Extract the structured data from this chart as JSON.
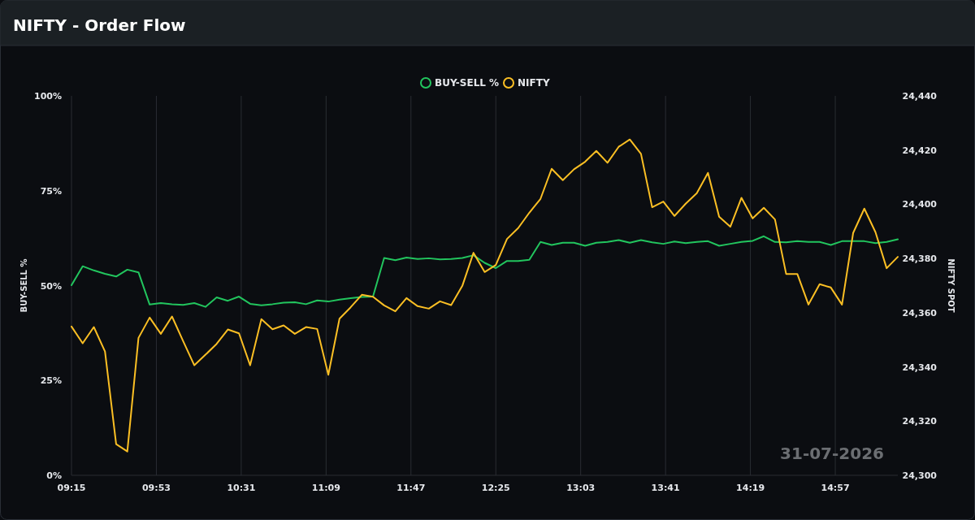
{
  "chart_data": {
    "type": "line",
    "title": "NIFTY - Order Flow",
    "ylabel": "BUY-SELL %",
    "y2label": "NIFTY SPOT",
    "annotations": [
      "31-07-2026"
    ],
    "x": [
      9.25,
      9.3333,
      9.4167,
      9.5,
      9.5833,
      9.6667,
      9.75,
      9.8333,
      9.9167,
      10,
      10.0833,
      10.1667,
      10.25,
      10.3333,
      10.4167,
      10.5,
      10.5833,
      10.6667,
      10.75,
      10.8333,
      10.9167,
      11,
      11.0833,
      11.1667,
      11.25,
      11.3333,
      11.4167,
      11.5,
      11.5833,
      11.6667,
      11.75,
      11.8333,
      11.9167,
      12,
      12.0833,
      12.1667,
      12.25,
      12.3333,
      12.4167,
      12.5,
      12.5833,
      12.6667,
      12.75,
      12.8333,
      12.9167,
      13,
      13.0833,
      13.1667,
      13.25,
      13.3333,
      13.4167,
      13.5,
      13.5833,
      13.6667,
      13.75,
      13.8333,
      13.9167,
      14,
      14.0833,
      14.1667,
      14.25,
      14.3333,
      14.4167,
      14.5,
      14.5833,
      14.6667,
      14.75,
      14.8333,
      14.9167,
      15,
      15.0833,
      15.1667,
      15.25,
      15.3333,
      15.4167
    ],
    "series": [
      {
        "name": "BUY-SELL %",
        "color": "#22c55e",
        "values": [
          50.1,
          55.1,
          54.0,
          53.1,
          52.4,
          54.2,
          53.5,
          45.0,
          45.4,
          45.1,
          44.9,
          45.4,
          44.4,
          46.9,
          46.0,
          47.1,
          45.2,
          44.8,
          45.1,
          45.5,
          45.6,
          45.1,
          46.1,
          45.8,
          46.3,
          46.7,
          47.0,
          47.1,
          57.3,
          56.7,
          57.4,
          57.0,
          57.2,
          56.9,
          57.0,
          57.3,
          58.0,
          56.0,
          54.6,
          56.5,
          56.5,
          56.8,
          61.5,
          60.7,
          61.3,
          61.3,
          60.5,
          61.3,
          61.5,
          62.0,
          61.3,
          62.0,
          61.4,
          61.0,
          61.6,
          61.2,
          61.5,
          61.7,
          60.5,
          61.0,
          61.5,
          61.8,
          63.0,
          61.5,
          61.4,
          61.7,
          61.5,
          61.5,
          60.7,
          61.7,
          61.7,
          61.7,
          61.2,
          61.5,
          62.2
        ]
      },
      {
        "name": "NIFTY",
        "color": "#fbbf24",
        "axis": "y2",
        "values": [
          24354.9,
          24348.7,
          24354.7,
          24345.7,
          24311.5,
          24308.8,
          24350.7,
          24358.2,
          24352.2,
          24358.6,
          24349.5,
          24340.6,
          24344.5,
          24348.5,
          24353.8,
          24352.4,
          24340.6,
          24357.6,
          24353.9,
          24355.3,
          24352.2,
          24354.7,
          24354.0,
          24337.1,
          24357.8,
          24362.0,
          24366.6,
          24365.9,
          24362.7,
          24360.5,
          24365.4,
          24362.4,
          24361.5,
          24364.2,
          24362.8,
          24369.9,
          24382.1,
          24375.0,
          24377.6,
          24387.2,
          24391.2,
          24396.9,
          24402.0,
          24413.1,
          24408.9,
          24412.9,
          24415.7,
          24419.7,
          24415.3,
          24421.2,
          24423.9,
          24418.6,
          24398.9,
          24401.0,
          24395.7,
          24400.2,
          24404.1,
          24411.6,
          24395.4,
          24391.7,
          24402.4,
          24394.8,
          24398.7,
          24394.4,
          24374.3,
          24374.3,
          24363.0,
          24370.5,
          24369.3,
          24363.0,
          24389.4,
          24398.4,
          24389.7,
          24376.4,
          24380.6
        ]
      }
    ],
    "xlim": [
      9.25,
      15.4167
    ],
    "xticks": [
      {
        "value": 9.25,
        "label": "09:15"
      },
      {
        "value": 9.8833,
        "label": "09:53"
      },
      {
        "value": 10.5167,
        "label": "10:31"
      },
      {
        "value": 11.15,
        "label": "11:09"
      },
      {
        "value": 11.7833,
        "label": "11:47"
      },
      {
        "value": 12.4167,
        "label": "12:25"
      },
      {
        "value": 13.05,
        "label": "13:03"
      },
      {
        "value": 13.6833,
        "label": "13:41"
      },
      {
        "value": 14.3167,
        "label": "14:19"
      },
      {
        "value": 14.95,
        "label": "14:57"
      }
    ],
    "ylim": [
      0,
      100
    ],
    "yticks": [
      {
        "value": 0,
        "label": "0%"
      },
      {
        "value": 25,
        "label": "25%"
      },
      {
        "value": 50,
        "label": "50%"
      },
      {
        "value": 75,
        "label": "75%"
      },
      {
        "value": 100,
        "label": "100%"
      }
    ],
    "y2lim": [
      24300,
      24440
    ],
    "y2ticks": [
      {
        "value": 24300,
        "label": "24,300"
      },
      {
        "value": 24320,
        "label": "24,320"
      },
      {
        "value": 24340,
        "label": "24,340"
      },
      {
        "value": 24360,
        "label": "24,360"
      },
      {
        "value": 24380,
        "label": "24,380"
      },
      {
        "value": 24400,
        "label": "24,400"
      },
      {
        "value": 24420,
        "label": "24,420"
      },
      {
        "value": 24440,
        "label": "24,440"
      }
    ],
    "grid": "x",
    "legend": "top",
    "marker": "none",
    "line_style": "solid"
  }
}
